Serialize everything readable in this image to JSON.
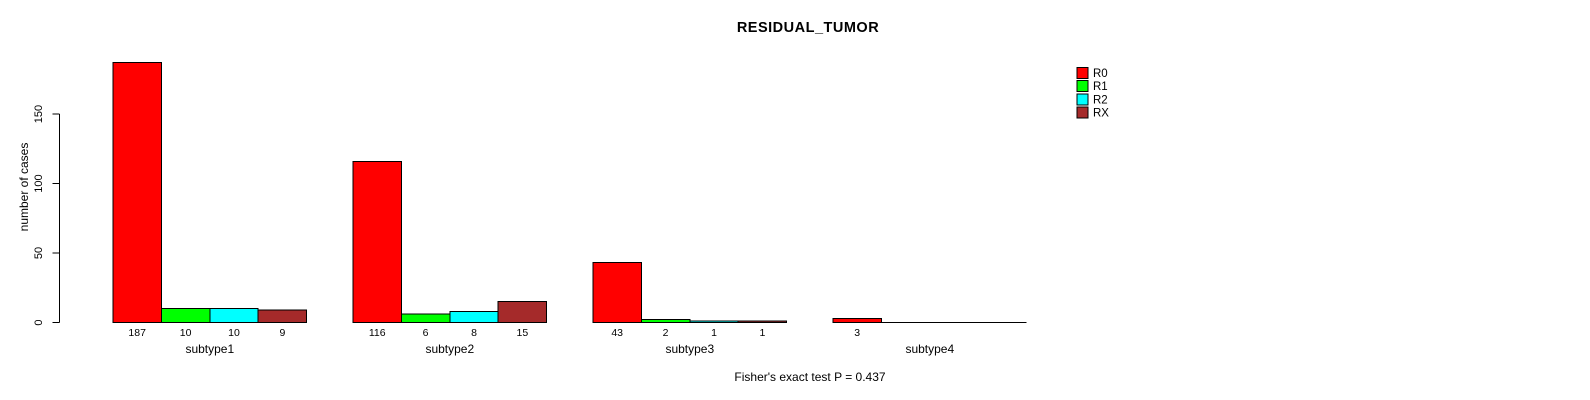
{
  "title": "RESIDUAL_TUMOR",
  "ylabel": "number of cases",
  "footer": "Fisher's exact test P = 0.437",
  "chart_data": {
    "type": "bar",
    "grouped": true,
    "title": "RESIDUAL_TUMOR",
    "xlabel": "",
    "ylabel": "number of cases",
    "categories": [
      "subtype1",
      "subtype2",
      "subtype3",
      "subtype4"
    ],
    "series": [
      {
        "name": "R0",
        "color": "#FF0000",
        "values": [
          187,
          116,
          43,
          3
        ]
      },
      {
        "name": "R1",
        "color": "#00FF00",
        "values": [
          10,
          6,
          2,
          0
        ]
      },
      {
        "name": "R2",
        "color": "#00FFFF",
        "values": [
          10,
          8,
          1,
          0
        ]
      },
      {
        "name": "RX",
        "color": "#A52A2A",
        "values": [
          9,
          15,
          1,
          0
        ]
      }
    ],
    "bar_value_labels": [
      [
        "187",
        "10",
        "10",
        "9"
      ],
      [
        "116",
        "6",
        "8",
        "15"
      ],
      [
        "43",
        "2",
        "1",
        "1"
      ],
      [
        "3",
        "",
        "",
        ""
      ]
    ],
    "yticks": [
      0,
      50,
      100,
      150
    ],
    "ylim": [
      0,
      187
    ],
    "grid": false,
    "legend_position": "right",
    "annotation": "Fisher's exact test P = 0.437",
    "axis_color": "#000000",
    "bar_border_color": "#000000"
  }
}
